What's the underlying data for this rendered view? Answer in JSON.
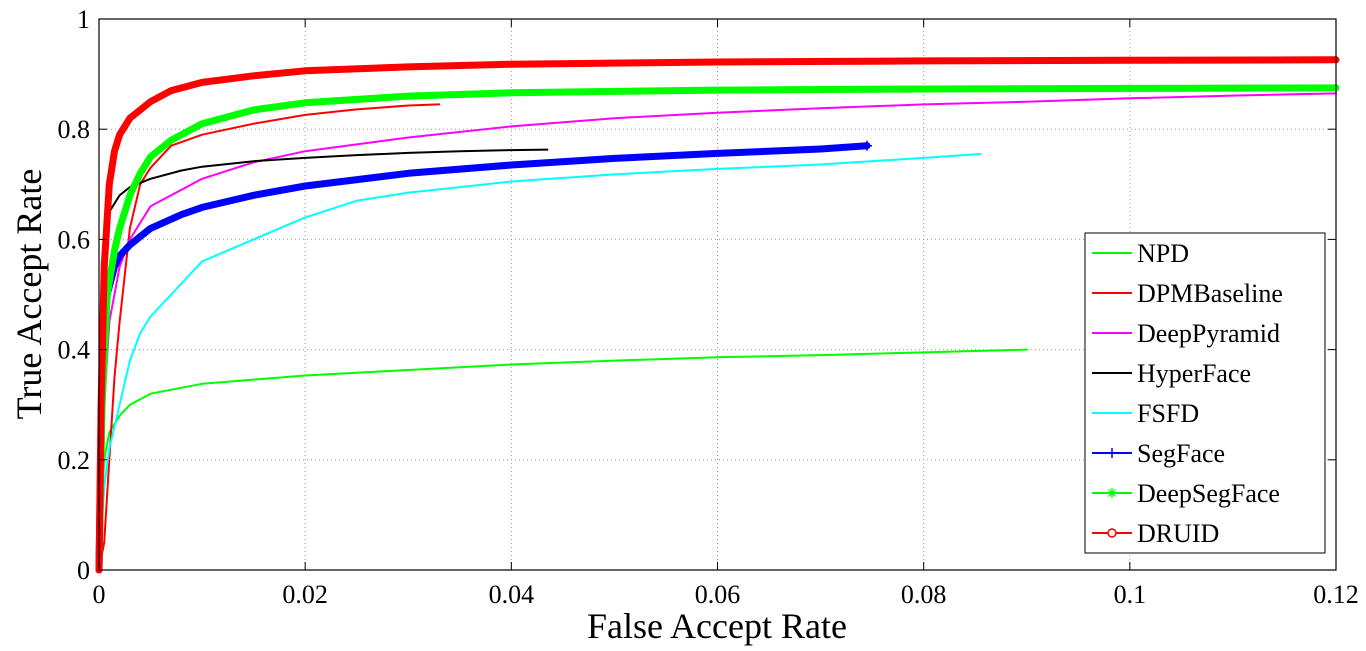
{
  "chart_data": {
    "type": "line",
    "title": "",
    "xlabel": "False Accept Rate",
    "ylabel": "True Accept Rate",
    "xlim": [
      0,
      0.12
    ],
    "ylim": [
      0,
      1
    ],
    "x_ticks": [
      0,
      0.02,
      0.04,
      0.06,
      0.08,
      0.1,
      0.12
    ],
    "x_tick_labels": [
      "0",
      "0.02",
      "0.04",
      "0.06",
      "0.08",
      "0.1",
      "0.12"
    ],
    "y_ticks": [
      0,
      0.2,
      0.4,
      0.6,
      0.8,
      1
    ],
    "y_tick_labels": [
      "0",
      "0.2",
      "0.4",
      "0.6",
      "0.8",
      "1"
    ],
    "grid": true,
    "legend_position": "lower-right",
    "series": [
      {
        "name": "NPD",
        "color": "#00ff00",
        "marker": "none",
        "line_weight": "thin",
        "points": [
          [
            0,
            0
          ],
          [
            0.0002,
            0.1
          ],
          [
            0.0005,
            0.2
          ],
          [
            0.001,
            0.25
          ],
          [
            0.002,
            0.28
          ],
          [
            0.003,
            0.3
          ],
          [
            0.005,
            0.32
          ],
          [
            0.01,
            0.338
          ],
          [
            0.02,
            0.353
          ],
          [
            0.03,
            0.363
          ],
          [
            0.04,
            0.373
          ],
          [
            0.05,
            0.38
          ],
          [
            0.06,
            0.386
          ],
          [
            0.07,
            0.39
          ],
          [
            0.08,
            0.395
          ],
          [
            0.09,
            0.4
          ]
        ]
      },
      {
        "name": "DPMBaseline",
        "color": "#ff0000",
        "marker": "none",
        "line_weight": "thin",
        "points": [
          [
            0,
            0
          ],
          [
            0.0005,
            0.05
          ],
          [
            0.001,
            0.2
          ],
          [
            0.0015,
            0.35
          ],
          [
            0.002,
            0.45
          ],
          [
            0.003,
            0.62
          ],
          [
            0.004,
            0.7
          ],
          [
            0.005,
            0.73
          ],
          [
            0.007,
            0.77
          ],
          [
            0.01,
            0.79
          ],
          [
            0.015,
            0.81
          ],
          [
            0.02,
            0.826
          ],
          [
            0.025,
            0.836
          ],
          [
            0.03,
            0.843
          ],
          [
            0.033,
            0.845
          ]
        ]
      },
      {
        "name": "DeepPyramid",
        "color": "#ff00ff",
        "marker": "none",
        "line_weight": "thin",
        "points": [
          [
            0,
            0
          ],
          [
            0.0005,
            0.3
          ],
          [
            0.001,
            0.45
          ],
          [
            0.002,
            0.55
          ],
          [
            0.003,
            0.6
          ],
          [
            0.005,
            0.66
          ],
          [
            0.008,
            0.69
          ],
          [
            0.01,
            0.71
          ],
          [
            0.015,
            0.74
          ],
          [
            0.02,
            0.76
          ],
          [
            0.03,
            0.785
          ],
          [
            0.04,
            0.805
          ],
          [
            0.05,
            0.82
          ],
          [
            0.06,
            0.83
          ],
          [
            0.07,
            0.838
          ],
          [
            0.08,
            0.845
          ],
          [
            0.09,
            0.85
          ],
          [
            0.1,
            0.856
          ],
          [
            0.11,
            0.861
          ],
          [
            0.12,
            0.865
          ]
        ]
      },
      {
        "name": "HyperFace",
        "color": "#000000",
        "marker": "none",
        "line_weight": "thin",
        "points": [
          [
            0,
            0
          ],
          [
            0.0002,
            0.3
          ],
          [
            0.0005,
            0.55
          ],
          [
            0.001,
            0.65
          ],
          [
            0.002,
            0.68
          ],
          [
            0.003,
            0.695
          ],
          [
            0.005,
            0.71
          ],
          [
            0.008,
            0.725
          ],
          [
            0.01,
            0.732
          ],
          [
            0.015,
            0.742
          ],
          [
            0.02,
            0.748
          ],
          [
            0.025,
            0.753
          ],
          [
            0.03,
            0.757
          ],
          [
            0.035,
            0.76
          ],
          [
            0.04,
            0.762
          ],
          [
            0.0435,
            0.763
          ]
        ]
      },
      {
        "name": "FSFD",
        "color": "#00ffff",
        "marker": "none",
        "line_weight": "thin",
        "points": [
          [
            0,
            0
          ],
          [
            0.0005,
            0.15
          ],
          [
            0.001,
            0.22
          ],
          [
            0.002,
            0.3
          ],
          [
            0.003,
            0.38
          ],
          [
            0.004,
            0.43
          ],
          [
            0.005,
            0.46
          ],
          [
            0.007,
            0.5
          ],
          [
            0.01,
            0.56
          ],
          [
            0.015,
            0.6
          ],
          [
            0.02,
            0.64
          ],
          [
            0.025,
            0.67
          ],
          [
            0.03,
            0.685
          ],
          [
            0.035,
            0.695
          ],
          [
            0.04,
            0.705
          ],
          [
            0.05,
            0.718
          ],
          [
            0.06,
            0.728
          ],
          [
            0.07,
            0.736
          ],
          [
            0.08,
            0.748
          ],
          [
            0.0855,
            0.755
          ]
        ]
      },
      {
        "name": "SegFace",
        "color": "#0000ff",
        "marker": "plus",
        "line_weight": "thick",
        "points": [
          [
            0,
            0
          ],
          [
            0.0003,
            0.35
          ],
          [
            0.0008,
            0.5
          ],
          [
            0.0015,
            0.55
          ],
          [
            0.002,
            0.57
          ],
          [
            0.003,
            0.59
          ],
          [
            0.005,
            0.62
          ],
          [
            0.008,
            0.645
          ],
          [
            0.01,
            0.658
          ],
          [
            0.015,
            0.68
          ],
          [
            0.02,
            0.697
          ],
          [
            0.03,
            0.72
          ],
          [
            0.04,
            0.735
          ],
          [
            0.05,
            0.747
          ],
          [
            0.06,
            0.756
          ],
          [
            0.07,
            0.764
          ],
          [
            0.0745,
            0.77
          ]
        ]
      },
      {
        "name": "DeepSegFace",
        "color": "#00ff00",
        "marker": "star",
        "line_weight": "thick",
        "points": [
          [
            0,
            0
          ],
          [
            0.0003,
            0.3
          ],
          [
            0.0008,
            0.5
          ],
          [
            0.0015,
            0.58
          ],
          [
            0.002,
            0.62
          ],
          [
            0.003,
            0.68
          ],
          [
            0.004,
            0.72
          ],
          [
            0.005,
            0.75
          ],
          [
            0.007,
            0.78
          ],
          [
            0.01,
            0.81
          ],
          [
            0.015,
            0.835
          ],
          [
            0.02,
            0.848
          ],
          [
            0.03,
            0.86
          ],
          [
            0.04,
            0.866
          ],
          [
            0.06,
            0.871
          ],
          [
            0.08,
            0.873
          ],
          [
            0.1,
            0.874
          ],
          [
            0.12,
            0.875
          ]
        ]
      },
      {
        "name": "DRUID",
        "color": "#ff0000",
        "marker": "circle",
        "line_weight": "thick",
        "points": [
          [
            0,
            0
          ],
          [
            0.0002,
            0.3
          ],
          [
            0.0005,
            0.55
          ],
          [
            0.001,
            0.7
          ],
          [
            0.0015,
            0.76
          ],
          [
            0.002,
            0.79
          ],
          [
            0.003,
            0.82
          ],
          [
            0.005,
            0.85
          ],
          [
            0.007,
            0.87
          ],
          [
            0.01,
            0.885
          ],
          [
            0.015,
            0.897
          ],
          [
            0.02,
            0.906
          ],
          [
            0.03,
            0.913
          ],
          [
            0.04,
            0.918
          ],
          [
            0.06,
            0.922
          ],
          [
            0.08,
            0.924
          ],
          [
            0.1,
            0.925
          ],
          [
            0.12,
            0.926
          ]
        ]
      }
    ]
  }
}
